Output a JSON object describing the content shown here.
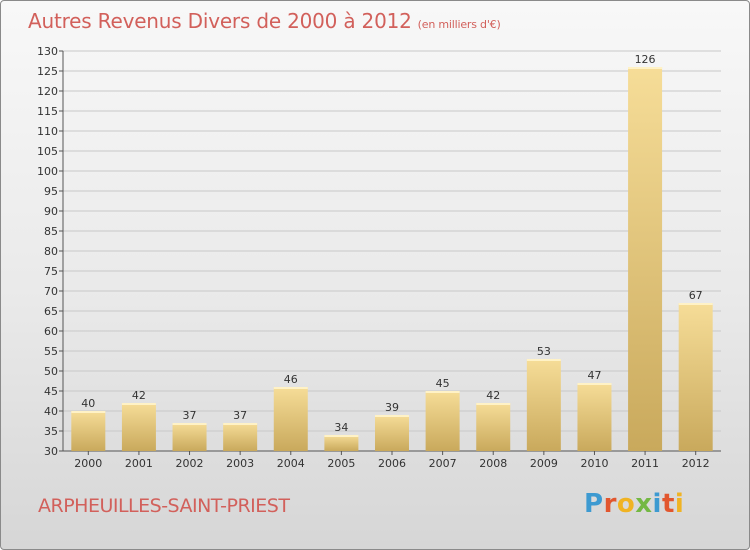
{
  "header": {
    "title": "Autres Revenus Divers de 2000 à 2012",
    "unit": "(en milliers d'€)"
  },
  "footer": {
    "commune": "ARPHEUILLES-SAINT-PRIEST",
    "brand_letters": [
      "P",
      "r",
      "o",
      "x",
      "i",
      "t",
      "i"
    ],
    "brand_colors": [
      "#3d9ad1",
      "#e2562e",
      "#f0b323",
      "#74b843",
      "#3d9ad1",
      "#e2562e",
      "#f0b323"
    ]
  },
  "colors": {
    "title": "#d2605b",
    "bar_light": "#f6dd98",
    "bar_dark": "#c9a95c",
    "grid": "#c8c8c8",
    "axis": "#555555"
  },
  "chart_data": {
    "type": "bar",
    "categories": [
      "2000",
      "2001",
      "2002",
      "2003",
      "2004",
      "2005",
      "2006",
      "2007",
      "2008",
      "2009",
      "2010",
      "2011",
      "2012"
    ],
    "values": [
      40,
      42,
      37,
      37,
      46,
      34,
      39,
      45,
      42,
      53,
      47,
      126,
      67
    ],
    "title": "Autres Revenus Divers de 2000 à 2012",
    "subtitle": "(en milliers d'€)",
    "ylim": [
      30,
      130
    ],
    "yticks": [
      30,
      35,
      40,
      45,
      50,
      55,
      60,
      65,
      70,
      75,
      80,
      85,
      90,
      95,
      100,
      105,
      110,
      115,
      120,
      125,
      130
    ],
    "grid": true,
    "data_labels": true
  }
}
